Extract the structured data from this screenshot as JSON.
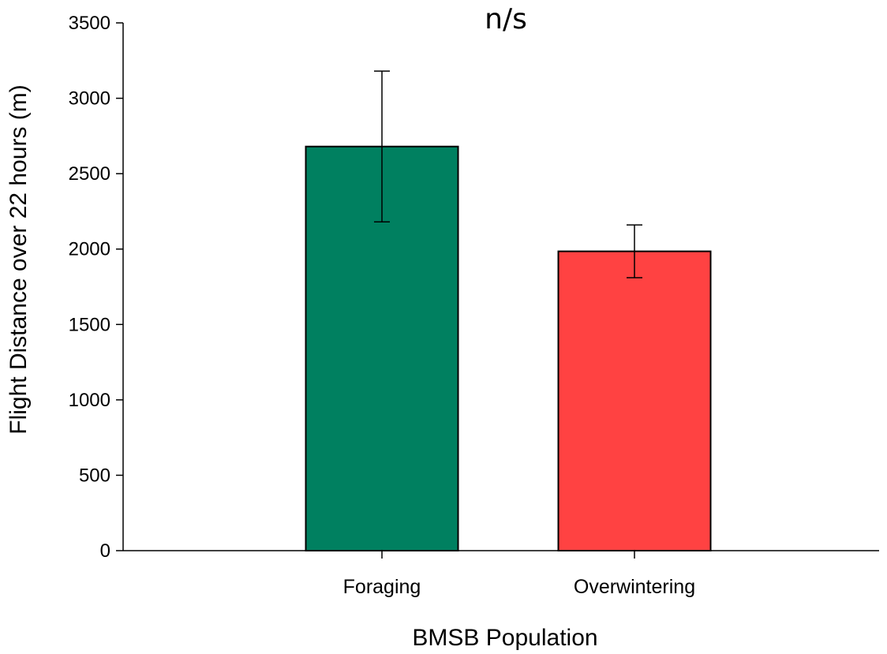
{
  "chart_data": {
    "type": "bar",
    "title": "",
    "annotation": "n/s",
    "xlabel": "BMSB Population",
    "ylabel": "Flight Distance over 22 hours (m)",
    "categories": [
      "Foraging",
      "Overwintering"
    ],
    "values": [
      2680,
      1985
    ],
    "errors": [
      500,
      175
    ],
    "colors": [
      "#008060",
      "#ff4242"
    ],
    "ylim": [
      0,
      3500
    ],
    "yticks": [
      0,
      500,
      1000,
      1500,
      2000,
      2500,
      3000,
      3500
    ],
    "grid": false,
    "legend": "none"
  }
}
